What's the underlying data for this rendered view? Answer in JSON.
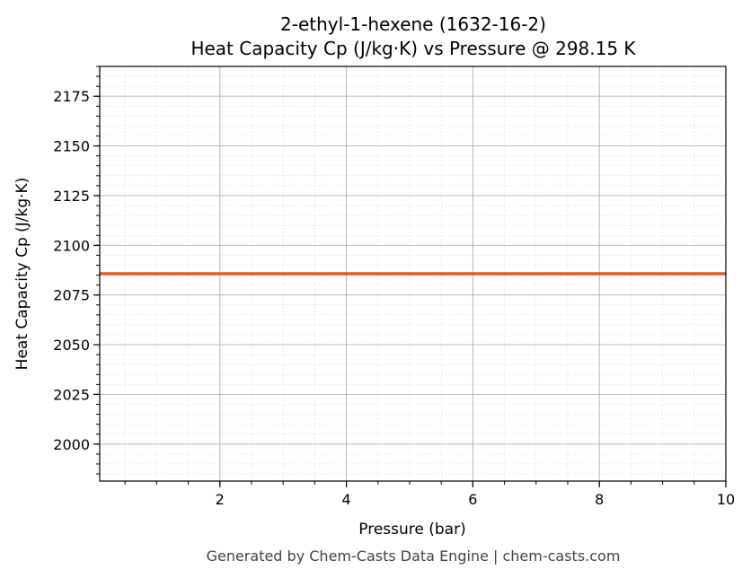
{
  "chart_data": {
    "type": "line",
    "title_line1": "2-ethyl-1-hexene (1632-16-2)",
    "title_line2": "Heat Capacity Cp (J/kg·K) vs Pressure @ 298.15 K",
    "xlabel": "Pressure (bar)",
    "ylabel": "Heat Capacity Cp (J/kg·K)",
    "xlim": [
      0.1,
      10
    ],
    "ylim": [
      1981.4,
      2190.0
    ],
    "xticks": [
      2,
      4,
      6,
      8,
      10
    ],
    "yticks": [
      2000,
      2025,
      2050,
      2075,
      2100,
      2125,
      2150,
      2175
    ],
    "grid": true,
    "series": [
      {
        "x": [
          0.1,
          10
        ],
        "y": [
          2085.7,
          2085.7
        ],
        "color": "#e05a23"
      }
    ]
  },
  "footer": "Generated by Chem-Casts Data Engine | chem-casts.com"
}
